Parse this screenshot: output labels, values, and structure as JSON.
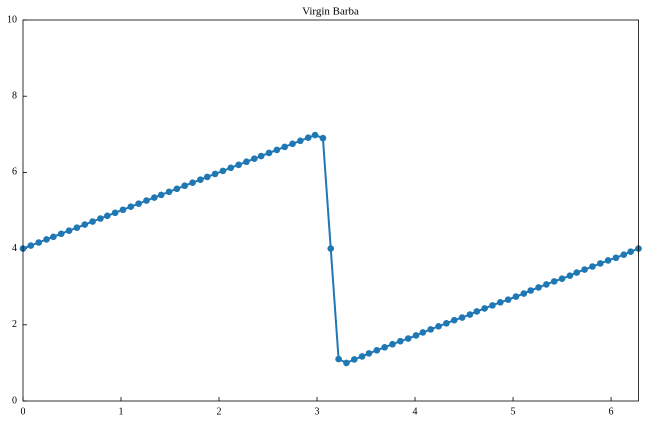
{
  "chart_data": {
    "type": "line",
    "title": "Virgin Barba",
    "x": [
      0,
      0.08,
      0.16,
      0.24,
      0.31,
      0.39,
      0.47,
      0.55,
      0.63,
      0.71,
      0.79,
      0.86,
      0.94,
      1.02,
      1.1,
      1.18,
      1.26,
      1.34,
      1.41,
      1.49,
      1.57,
      1.65,
      1.73,
      1.81,
      1.88,
      1.96,
      2.04,
      2.12,
      2.2,
      2.28,
      2.36,
      2.43,
      2.51,
      2.59,
      2.67,
      2.75,
      2.83,
      2.91,
      2.98,
      3.06,
      3.14,
      3.22,
      3.3,
      3.38,
      3.46,
      3.53,
      3.61,
      3.69,
      3.77,
      3.85,
      3.93,
      4.01,
      4.08,
      4.16,
      4.24,
      4.32,
      4.4,
      4.48,
      4.56,
      4.63,
      4.71,
      4.79,
      4.87,
      4.95,
      5.03,
      5.11,
      5.18,
      5.26,
      5.34,
      5.42,
      5.5,
      5.58,
      5.65,
      5.73,
      5.81,
      5.89,
      5.97,
      6.05,
      6.13,
      6.2,
      6.28
    ],
    "series": [
      {
        "color": "#1f77b4",
        "values": [
          4,
          4.08,
          4.16,
          4.24,
          4.31,
          4.39,
          4.47,
          4.55,
          4.63,
          4.71,
          4.79,
          4.86,
          4.94,
          5.02,
          5.1,
          5.18,
          5.26,
          5.34,
          5.41,
          5.49,
          5.57,
          5.65,
          5.73,
          5.81,
          5.88,
          5.96,
          6.04,
          6.12,
          6.2,
          6.28,
          6.36,
          6.43,
          6.51,
          6.59,
          6.67,
          6.75,
          6.83,
          6.91,
          6.98,
          6.9,
          4,
          1.1,
          1.0,
          1.09,
          1.17,
          1.25,
          1.33,
          1.41,
          1.49,
          1.57,
          1.64,
          1.72,
          1.8,
          1.88,
          1.96,
          2.04,
          2.12,
          2.19,
          2.27,
          2.35,
          2.43,
          2.51,
          2.59,
          2.66,
          2.74,
          2.82,
          2.9,
          2.98,
          3.06,
          3.14,
          3.21,
          3.29,
          3.37,
          3.45,
          3.53,
          3.61,
          3.69,
          3.76,
          3.84,
          3.92,
          4.0
        ]
      }
    ],
    "xlim": [
      0,
      6.28
    ],
    "ylim": [
      0,
      10
    ],
    "xticks": [
      0,
      1,
      2,
      3,
      4,
      5,
      6
    ],
    "yticks": [
      0,
      2,
      4,
      6,
      8,
      10
    ]
  }
}
